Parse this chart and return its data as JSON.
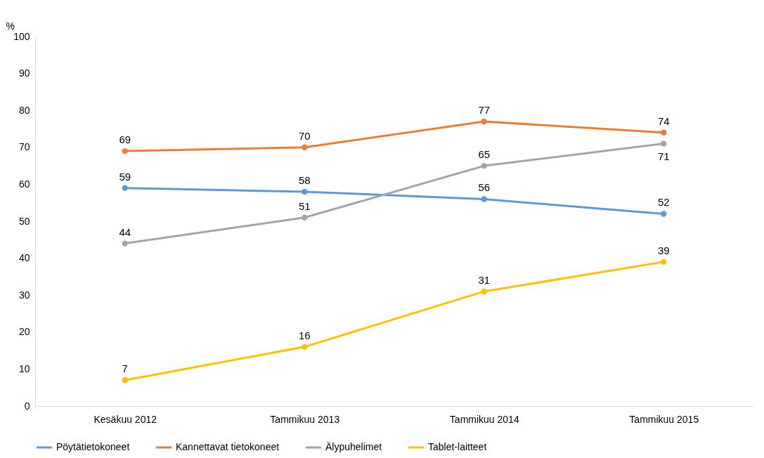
{
  "chart_data": {
    "type": "line",
    "ylabel": "%",
    "categories": [
      "Kesäkuu 2012",
      "Tammikuu 2013",
      "Tammikuu 2014",
      "Tammikuu 2015"
    ],
    "series": [
      {
        "name": "Pöytätietokoneet",
        "color": "#5b9bd5",
        "values": [
          59,
          58,
          56,
          52
        ]
      },
      {
        "name": "Kannettavat tietokoneet",
        "color": "#ed7d31",
        "values": [
          69,
          70,
          77,
          74
        ]
      },
      {
        "name": "Älypuhelimet",
        "color": "#a5a5a5",
        "values": [
          44,
          51,
          65,
          71
        ]
      },
      {
        "name": "Tablet-laitteet",
        "color": "#ffc000",
        "values": [
          7,
          16,
          31,
          39
        ]
      }
    ],
    "ylim": [
      0,
      100
    ],
    "yticks": [
      0,
      10,
      20,
      30,
      40,
      50,
      60,
      70,
      80,
      90,
      100
    ],
    "grid": false,
    "legend": "bottom",
    "marker": "circle",
    "line_style": "solid",
    "data_labels": true
  }
}
